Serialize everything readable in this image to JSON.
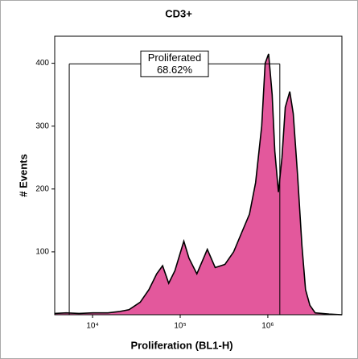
{
  "chart_data": {
    "type": "histogram-area",
    "title": "CD3+",
    "xlabel": "Proliferation (BL1-H)",
    "ylabel": "# Events",
    "log_x": true,
    "color": "#e3589c",
    "x": [
      3700,
      5000,
      7000,
      10000,
      15000,
      20000,
      26000,
      35000,
      44000,
      54000,
      63000,
      74000,
      87000,
      110000,
      126000,
      155000,
      204000,
      251000,
      324000,
      407000,
      501000,
      617000,
      724000,
      851000,
      933000,
      1020000,
      1120000,
      1200000,
      1320000,
      1450000,
      1580000,
      1780000,
      1950000,
      2190000,
      2450000,
      2690000,
      3020000,
      3470000,
      5000000,
      7000000
    ],
    "values": [
      2,
      3,
      2,
      3,
      3,
      5,
      8,
      20,
      40,
      65,
      78,
      50,
      70,
      117,
      90,
      65,
      104,
      75,
      80,
      100,
      130,
      160,
      210,
      300,
      400,
      415,
      350,
      260,
      195,
      250,
      330,
      355,
      320,
      220,
      110,
      40,
      15,
      3,
      1,
      0
    ],
    "xlim": [
      3700,
      7000000
    ],
    "ylim": [
      0,
      443
    ],
    "xticks": [
      {
        "value": 10000,
        "label": "10⁴"
      },
      {
        "value": 100000,
        "label": "10⁵"
      },
      {
        "value": 1000000,
        "label": "10⁶"
      }
    ],
    "yticks": [
      100,
      200,
      300,
      400
    ],
    "gate": {
      "name": "Proliferated",
      "percent_label": "68.62%",
      "x": [
        5420,
        1370000
      ],
      "y": 399
    }
  }
}
